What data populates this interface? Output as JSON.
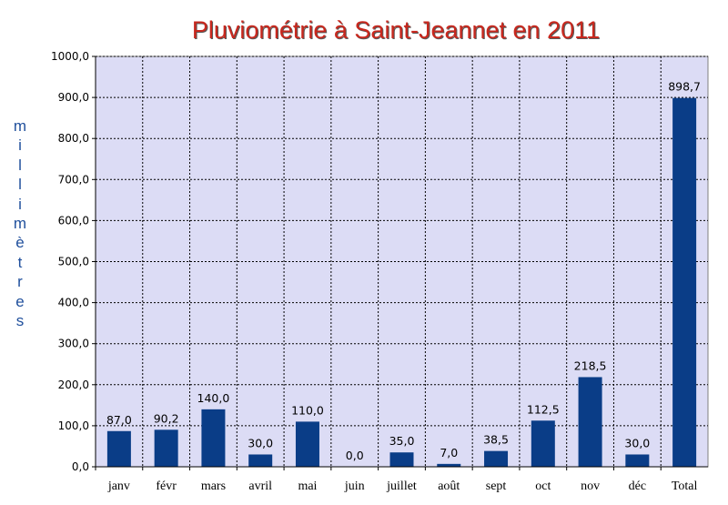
{
  "chart_data": {
    "type": "bar",
    "title": "Pluviométrie à Saint-Jeannet en 2011",
    "ylabel": "millimètres",
    "xlabel": "",
    "categories": [
      "janv",
      "févr",
      "mars",
      "avril",
      "mai",
      "juin",
      "juillet",
      "août",
      "sept",
      "oct",
      "nov",
      "déc",
      "Total"
    ],
    "values": [
      87.0,
      90.2,
      140.0,
      30.0,
      110.0,
      0.0,
      35.0,
      7.0,
      38.5,
      112.5,
      218.5,
      30.0,
      898.7
    ],
    "value_labels": [
      "87,0",
      "90,2",
      "140,0",
      "30,0",
      "110,0",
      "0,0",
      "35,0",
      "7,0",
      "38,5",
      "112,5",
      "218,5",
      "30,0",
      "898,7"
    ],
    "ylim": [
      0,
      1000
    ],
    "yticks": [
      0,
      100,
      200,
      300,
      400,
      500,
      600,
      700,
      800,
      900,
      1000
    ],
    "ytick_labels": [
      "0,0",
      "100,0",
      "200,0",
      "300,0",
      "400,0",
      "500,0",
      "600,0",
      "700,0",
      "800,0",
      "900,0",
      "1000,0"
    ],
    "grid": true,
    "legend": "none",
    "colors": {
      "bar": "#0a3d87",
      "plot_background": "#dcdcf5",
      "title": "#c8281e",
      "ylabel": "#1f4f9c",
      "grid": "#000000"
    }
  }
}
